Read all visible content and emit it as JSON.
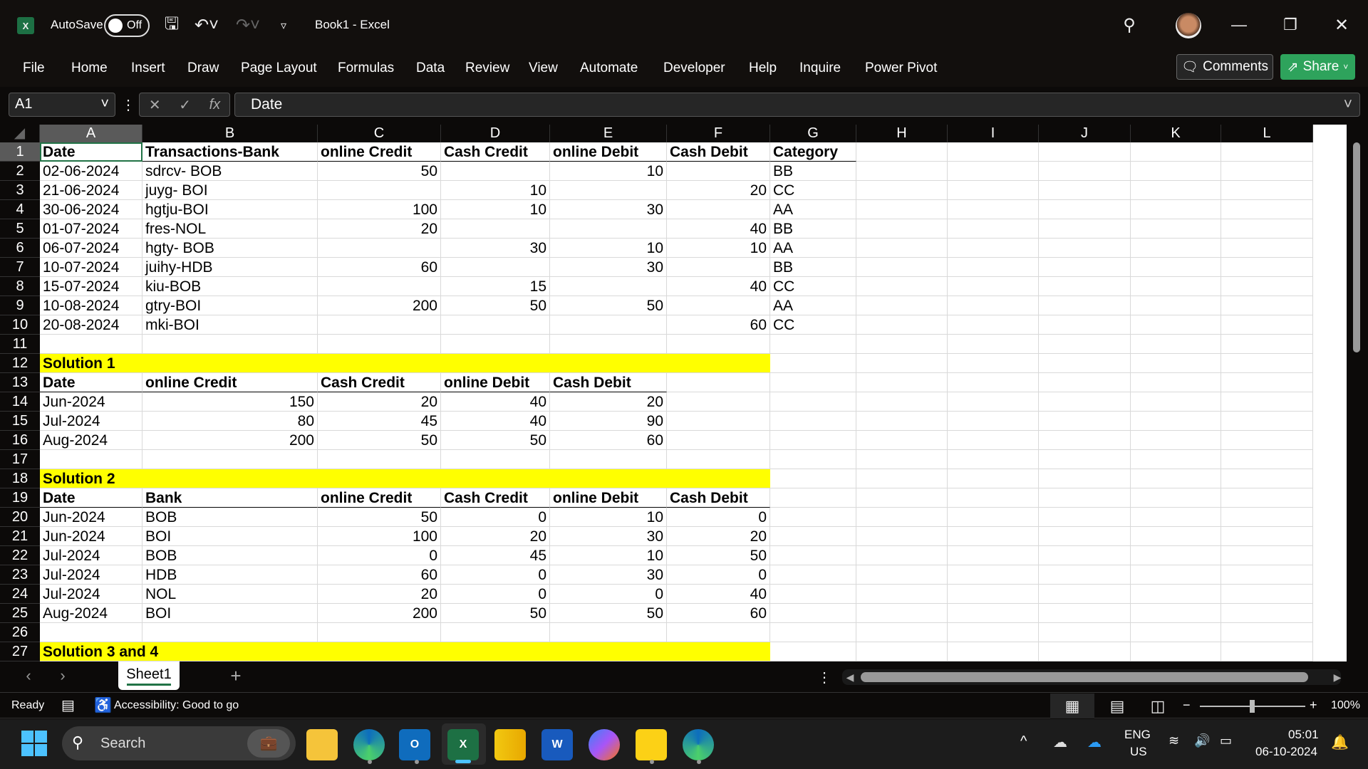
{
  "titlebar": {
    "autosave_label": "AutoSave",
    "autosave_state": "Off",
    "title": "Book1  -  Excel"
  },
  "ribbon": {
    "tabs": [
      "File",
      "Home",
      "Insert",
      "Draw",
      "Page Layout",
      "Formulas",
      "Data",
      "Review",
      "View",
      "Automate",
      "Developer",
      "Help",
      "Inquire",
      "Power Pivot"
    ],
    "comments": "Comments",
    "share": "Share"
  },
  "formula_bar": {
    "name_box": "A1",
    "fx": "fx",
    "formula": "Date"
  },
  "sheet": {
    "columns": [
      "A",
      "B",
      "C",
      "D",
      "E",
      "F",
      "G",
      "H",
      "I",
      "J",
      "K",
      "L"
    ],
    "selected_cell": "A1",
    "rows": [
      {
        "n": "1",
        "style": "header",
        "cells": [
          "Date",
          "Transactions-Bank",
          "online Credit",
          "Cash Credit",
          "online Debit",
          "Cash Debit",
          "Category"
        ]
      },
      {
        "n": "2",
        "cells": [
          "02-06-2024",
          "sdrcv- BOB",
          "50",
          "",
          "10",
          "",
          "BB"
        ]
      },
      {
        "n": "3",
        "cells": [
          "21-06-2024",
          "juyg- BOI",
          "",
          "10",
          "",
          "20",
          "CC"
        ]
      },
      {
        "n": "4",
        "cells": [
          "30-06-2024",
          "hgtju-BOI",
          "100",
          "10",
          "30",
          "",
          "AA"
        ]
      },
      {
        "n": "5",
        "cells": [
          "01-07-2024",
          "fres-NOL",
          "20",
          "",
          "",
          "40",
          "BB"
        ]
      },
      {
        "n": "6",
        "cells": [
          "06-07-2024",
          "hgty- BOB",
          "",
          "30",
          "10",
          "10",
          "AA"
        ]
      },
      {
        "n": "7",
        "cells": [
          "10-07-2024",
          "juihy-HDB",
          "60",
          "",
          "30",
          "",
          "BB"
        ]
      },
      {
        "n": "8",
        "cells": [
          "15-07-2024",
          "kiu-BOB",
          "",
          "15",
          "",
          "40",
          "CC"
        ]
      },
      {
        "n": "9",
        "cells": [
          "10-08-2024",
          "gtry-BOI",
          "200",
          "50",
          "50",
          "",
          "AA"
        ]
      },
      {
        "n": "10",
        "cells": [
          "20-08-2024",
          "mki-BOI",
          "",
          "",
          "",
          "60",
          "CC"
        ]
      },
      {
        "n": "11",
        "cells": []
      },
      {
        "n": "12",
        "style": "section",
        "cells": [
          "Solution 1"
        ]
      },
      {
        "n": "13",
        "style": "header5",
        "cells": [
          "Date",
          "online Credit",
          "Cash Credit",
          "online Debit",
          "Cash Debit"
        ]
      },
      {
        "n": "14",
        "cells": [
          "Jun-2024",
          "150",
          "20",
          "40",
          "20"
        ]
      },
      {
        "n": "15",
        "cells": [
          "Jul-2024",
          "80",
          "45",
          "40",
          "90"
        ]
      },
      {
        "n": "16",
        "cells": [
          "Aug-2024",
          "200",
          "50",
          "50",
          "60"
        ]
      },
      {
        "n": "17",
        "cells": []
      },
      {
        "n": "18",
        "style": "section",
        "cells": [
          "Solution 2"
        ]
      },
      {
        "n": "19",
        "style": "header6",
        "cells": [
          "Date",
          "Bank",
          "online Credit",
          "Cash Credit",
          "online Debit",
          "Cash Debit"
        ]
      },
      {
        "n": "20",
        "cells": [
          "Jun-2024",
          "BOB",
          "50",
          "0",
          "10",
          "0"
        ]
      },
      {
        "n": "21",
        "cells": [
          "Jun-2024",
          "BOI",
          "100",
          "20",
          "30",
          "20"
        ]
      },
      {
        "n": "22",
        "cells": [
          "Jul-2024",
          "BOB",
          "0",
          "45",
          "10",
          "50"
        ]
      },
      {
        "n": "23",
        "cells": [
          "Jul-2024",
          "HDB",
          "60",
          "0",
          "30",
          "0"
        ]
      },
      {
        "n": "24",
        "cells": [
          "Jul-2024",
          "NOL",
          "20",
          "0",
          "0",
          "40"
        ]
      },
      {
        "n": "25",
        "cells": [
          "Aug-2024",
          "BOI",
          "200",
          "50",
          "50",
          "60"
        ]
      },
      {
        "n": "26",
        "cells": []
      },
      {
        "n": "27",
        "style": "section",
        "cells": [
          "Solution 3 and 4"
        ]
      }
    ],
    "tabs": [
      "Sheet1"
    ]
  },
  "status": {
    "ready": "Ready",
    "accessibility": "Accessibility: Good to go",
    "zoom": "100%",
    "zoom_level": 100
  },
  "taskbar": {
    "search": "Search",
    "lang": "ENG",
    "region": "US",
    "time": "05:01",
    "date": "06-10-2024"
  },
  "colors": {
    "excel_green": "#217346",
    "share_green": "#2ea35c",
    "section_yellow": "#ffff00"
  }
}
